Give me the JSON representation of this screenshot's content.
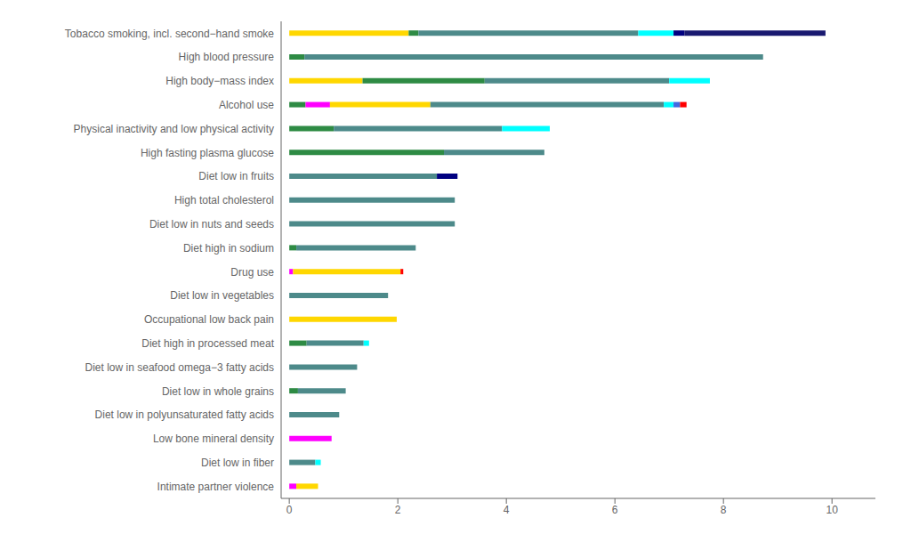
{
  "chart_data": {
    "type": "bar",
    "orientation": "horizontal",
    "stacked": true,
    "grid": false,
    "categories": [
      "Tobacco smoking, incl. second−hand smoke",
      "High blood pressure",
      "High body−mass index",
      "Alcohol use",
      "Physical inactivity and low physical activity",
      "High fasting plasma glucose",
      "Diet low in fruits",
      "High total cholesterol",
      "Diet low in nuts and seeds",
      "Diet high in sodium",
      "Drug use",
      "Diet low in vegetables",
      "Occupational low back pain",
      "Diet high in processed meat",
      "Diet low in seafood omega−3 fatty acids",
      "Diet low in whole grains",
      "Diet low in polyunsaturated fatty acids",
      "Low bone mineral density",
      "Diet low in fiber",
      "Intimate partner violence"
    ],
    "series": [
      {
        "values": [
          2.2,
          0.28,
          1.35,
          0.3,
          0.82,
          2.85,
          2.72,
          3.05,
          3.05,
          0.13,
          0.07,
          1.82,
          1.98,
          0.32,
          1.25,
          0.16,
          0.92,
          0.78,
          0.48,
          0.13
        ],
        "colors": [
          "#FFD700",
          "#2E8B44",
          "#FFD700",
          "#2E8B44",
          "#2E8B44",
          "#2E8B44",
          "#4D8A8A",
          "#4D8A8A",
          "#4D8A8A",
          "#2E8B44",
          "#FF00FF",
          "#4D8A8A",
          "#FFD700",
          "#2E8B44",
          "#4D8A8A",
          "#2E8B44",
          "#4D8A8A",
          "#FF00FF",
          "#4D8A8A",
          "#FF00FF"
        ]
      },
      {
        "values": [
          0.18,
          8.45,
          2.25,
          0.45,
          3.1,
          1.85,
          0.38,
          null,
          null,
          2.2,
          1.98,
          null,
          null,
          1.05,
          null,
          0.88,
          null,
          null,
          0.1,
          0.4
        ],
        "colors": [
          "#2E8B44",
          "#4D8A8A",
          "#2E8B44",
          "#FF00FF",
          "#4D8A8A",
          "#4D8A8A",
          "#000080",
          null,
          null,
          "#4D8A8A",
          "#FFD700",
          null,
          null,
          "#4D8A8A",
          null,
          "#4D8A8A",
          null,
          null,
          "#00FFFF",
          "#FFD700"
        ]
      },
      {
        "values": [
          4.05,
          null,
          3.4,
          1.85,
          0.88,
          null,
          null,
          null,
          null,
          null,
          0.05,
          null,
          null,
          0.1,
          null,
          null,
          null,
          null,
          null,
          null
        ],
        "colors": [
          "#4D8A8A",
          null,
          "#4D8A8A",
          "#FFD700",
          "#00FFFF",
          null,
          null,
          null,
          null,
          null,
          "#FF0000",
          null,
          null,
          "#00FFFF",
          null,
          null,
          null,
          null,
          null,
          null
        ]
      },
      {
        "values": [
          0.65,
          null,
          0.75,
          4.3,
          null,
          null,
          null,
          null,
          null,
          null,
          null,
          null,
          null,
          null,
          null,
          null,
          null,
          null,
          null,
          null
        ],
        "colors": [
          "#00FFFF",
          null,
          "#00FFFF",
          "#4D8A8A",
          null,
          null,
          null,
          null,
          null,
          null,
          null,
          null,
          null,
          null,
          null,
          null,
          null,
          null,
          null,
          null
        ]
      },
      {
        "values": [
          0.2,
          null,
          null,
          0.18,
          null,
          null,
          null,
          null,
          null,
          null,
          null,
          null,
          null,
          null,
          null,
          null,
          null,
          null,
          null,
          null
        ],
        "colors": [
          "#000080",
          null,
          null,
          "#00FFFF",
          null,
          null,
          null,
          null,
          null,
          null,
          null,
          null,
          null,
          null,
          null,
          null,
          null,
          null,
          null,
          null
        ]
      },
      {
        "values": [
          2.6,
          null,
          null,
          0.12,
          null,
          null,
          null,
          null,
          null,
          null,
          null,
          null,
          null,
          null,
          null,
          null,
          null,
          null,
          null,
          null
        ],
        "colors": [
          "#191970",
          null,
          null,
          "#4169E1",
          null,
          null,
          null,
          null,
          null,
          null,
          null,
          null,
          null,
          null,
          null,
          null,
          null,
          null,
          null,
          null
        ]
      },
      {
        "values": [
          null,
          null,
          null,
          0.12,
          null,
          null,
          null,
          null,
          null,
          null,
          null,
          null,
          null,
          null,
          null,
          null,
          null,
          null,
          null,
          null
        ],
        "colors": [
          null,
          null,
          null,
          "#FF0000",
          null,
          null,
          null,
          null,
          null,
          null,
          null,
          null,
          null,
          null,
          null,
          null,
          null,
          null,
          null,
          null
        ]
      }
    ],
    "xlim": [
      -0.15,
      10.8
    ],
    "xticks": [
      0,
      2,
      4,
      6,
      8,
      10
    ]
  }
}
